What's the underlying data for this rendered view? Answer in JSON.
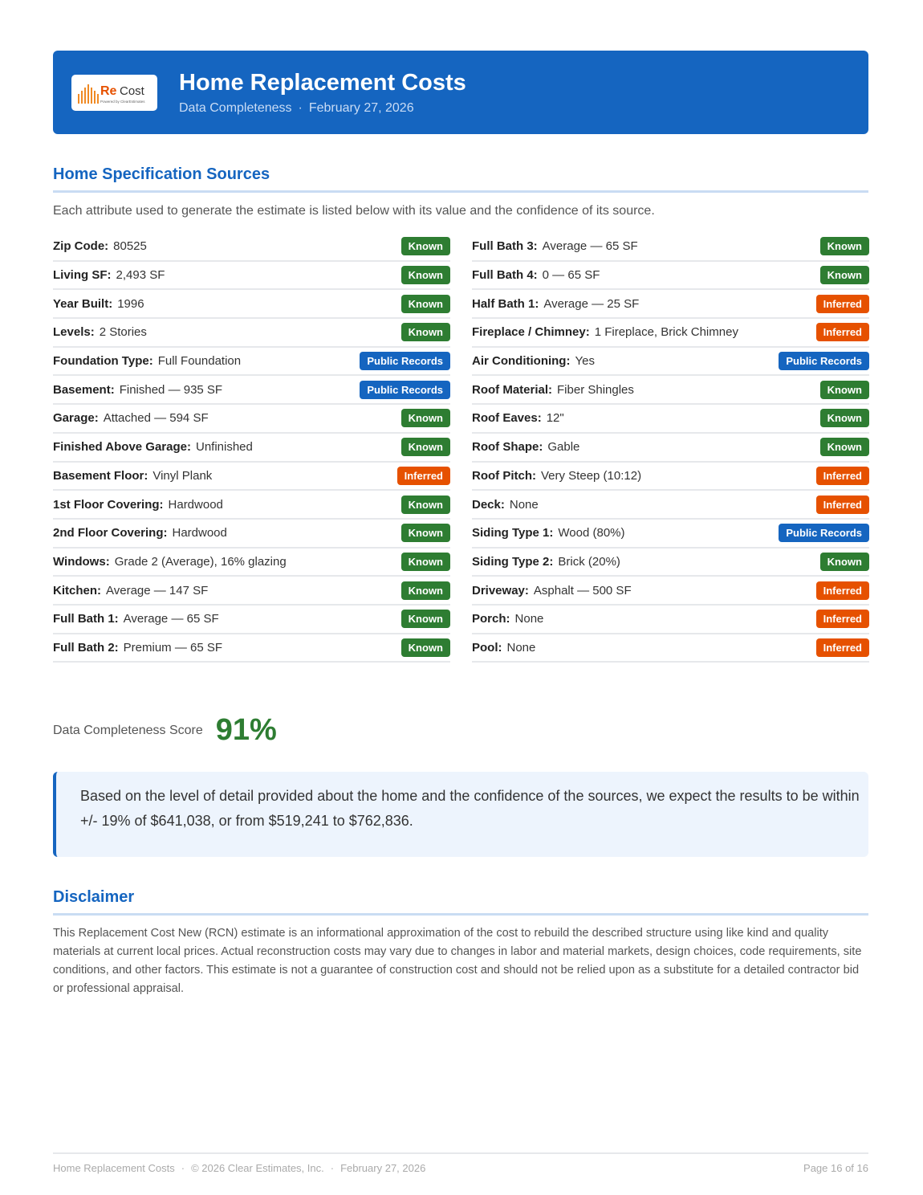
{
  "header": {
    "logo": {
      "re": "Re",
      "cost": "Cost",
      "tagline": "Powered by ClearEstimates"
    },
    "title": "Home Replacement Costs",
    "subtitle": "Data Completeness",
    "separator": "·",
    "date": "February 27, 2026"
  },
  "specs": {
    "title": "Home Specification Sources",
    "intro": "Each attribute used to generate the estimate is listed below with its value and the confidence of its source.",
    "columns": [
      [
        {
          "label": "Zip Code:",
          "value": "80525",
          "source": "Known",
          "color": "#2e7d32"
        },
        {
          "label": "Living SF:",
          "value": "2,493 SF",
          "source": "Known",
          "color": "#2e7d32"
        },
        {
          "label": "Year Built:",
          "value": "1996",
          "source": "Known",
          "color": "#2e7d32"
        },
        {
          "label": "Levels:",
          "value": "2 Stories",
          "source": "Known",
          "color": "#2e7d32"
        },
        {
          "label": "Foundation Type:",
          "value": "Full Foundation",
          "source": "Public Records",
          "color": "#1565c0"
        },
        {
          "label": "Basement:",
          "value": "Finished — 935 SF",
          "source": "Public Records",
          "color": "#1565c0"
        },
        {
          "label": "Garage:",
          "value": "Attached — 594 SF",
          "source": "Known",
          "color": "#2e7d32"
        },
        {
          "label": "Finished Above Garage:",
          "value": "Unfinished",
          "source": "Known",
          "color": "#2e7d32"
        },
        {
          "label": "Basement Floor:",
          "value": "Vinyl Plank",
          "source": "Inferred",
          "color": "#e65100"
        },
        {
          "label": "1st Floor Covering:",
          "value": "Hardwood",
          "source": "Known",
          "color": "#2e7d32"
        },
        {
          "label": "2nd Floor Covering:",
          "value": "Hardwood",
          "source": "Known",
          "color": "#2e7d32"
        },
        {
          "label": "Windows:",
          "value": "Grade 2 (Average), 16% glazing",
          "source": "Known",
          "color": "#2e7d32"
        },
        {
          "label": "Kitchen:",
          "value": "Average — 147 SF",
          "source": "Known",
          "color": "#2e7d32"
        },
        {
          "label": "Full Bath 1:",
          "value": "Average — 65 SF",
          "source": "Known",
          "color": "#2e7d32"
        },
        {
          "label": "Full Bath 2:",
          "value": "Premium — 65 SF",
          "source": "Known",
          "color": "#2e7d32"
        }
      ],
      [
        {
          "label": "Full Bath 3:",
          "value": "Average — 65 SF",
          "source": "Known",
          "color": "#2e7d32"
        },
        {
          "label": "Full Bath 4:",
          "value": "0 — 65 SF",
          "source": "Known",
          "color": "#2e7d32"
        },
        {
          "label": "Half Bath 1:",
          "value": "Average — 25 SF",
          "source": "Inferred",
          "color": "#e65100"
        },
        {
          "label": "Fireplace / Chimney:",
          "value": "1 Fireplace, Brick Chimney",
          "source": "Inferred",
          "color": "#e65100"
        },
        {
          "label": "Air Conditioning:",
          "value": "Yes",
          "source": "Public Records",
          "color": "#1565c0"
        },
        {
          "label": "Roof Material:",
          "value": "Fiber Shingles",
          "source": "Known",
          "color": "#2e7d32"
        },
        {
          "label": "Roof Eaves:",
          "value": "12\"",
          "source": "Known",
          "color": "#2e7d32"
        },
        {
          "label": "Roof Shape:",
          "value": "Gable",
          "source": "Known",
          "color": "#2e7d32"
        },
        {
          "label": "Roof Pitch:",
          "value": "Very Steep (10:12)",
          "source": "Inferred",
          "color": "#e65100"
        },
        {
          "label": "Deck:",
          "value": "None",
          "source": "Inferred",
          "color": "#e65100"
        },
        {
          "label": "Siding Type 1:",
          "value": "Wood (80%)",
          "source": "Public Records",
          "color": "#1565c0"
        },
        {
          "label": "Siding Type 2:",
          "value": "Brick (20%)",
          "source": "Known",
          "color": "#2e7d32"
        },
        {
          "label": "Driveway:",
          "value": "Asphalt — 500 SF",
          "source": "Inferred",
          "color": "#e65100"
        },
        {
          "label": "Porch:",
          "value": "None",
          "source": "Inferred",
          "color": "#e65100"
        },
        {
          "label": "Pool:",
          "value": "None",
          "source": "Inferred",
          "color": "#e65100"
        }
      ]
    ]
  },
  "score": {
    "label": "Data Completeness Score",
    "value": "91%"
  },
  "callout": "Based on the level of detail provided about the home and the confidence of the sources, we expect the results to be within +/- 19% of $641,038, or from $519,241 to $762,836.",
  "disclaimer": {
    "title": "Disclaimer",
    "text": "This Replacement Cost New (RCN) estimate is an informational approximation of the cost to rebuild the described structure using like kind and quality materials at current local prices. Actual reconstruction costs may vary due to changes in labor and material markets, design choices, code requirements, site conditions, and other factors. This estimate is not a guarantee of construction cost and should not be relied upon as a substitute for a detailed contractor bid or professional appraisal."
  },
  "footer": {
    "title": "Home Replacement Costs",
    "copyright": "© 2026 Clear Estimates, Inc.",
    "date": "February 27, 2026",
    "page": "Page 16 of 16"
  }
}
